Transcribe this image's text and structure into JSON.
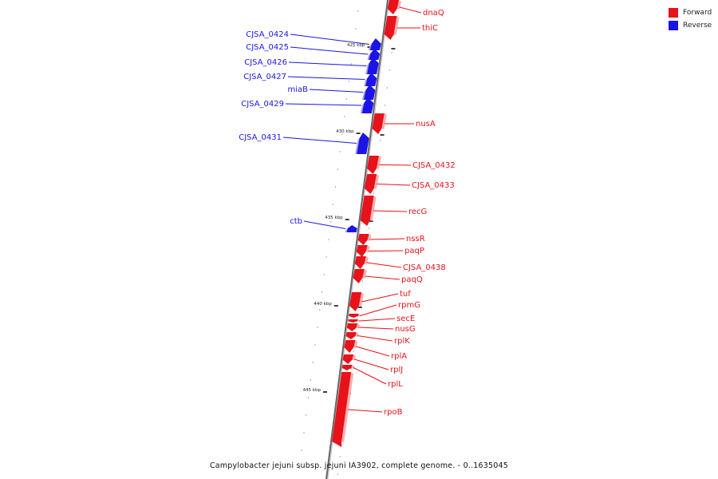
{
  "legend": {
    "forward": {
      "label": "Forward",
      "color": "#e8121a"
    },
    "reverse": {
      "label": "Reverse",
      "color": "#1c14e6"
    }
  },
  "caption": "Campylobacter jejuni subsp. jejuni IA3902, complete genome. - 0..1635045",
  "axis_ticks": [
    "425 kbp",
    "430 kbp",
    "435 kbp",
    "440 kbp",
    "445 kbp"
  ],
  "genes": [
    {
      "name": "dnaQ",
      "strand": "forward"
    },
    {
      "name": "thiC",
      "strand": "forward"
    },
    {
      "name": "CJSA_0424",
      "strand": "reverse"
    },
    {
      "name": "CJSA_0425",
      "strand": "reverse"
    },
    {
      "name": "CJSA_0426",
      "strand": "reverse"
    },
    {
      "name": "CJSA_0427",
      "strand": "reverse"
    },
    {
      "name": "miaB",
      "strand": "reverse"
    },
    {
      "name": "CJSA_0429",
      "strand": "reverse"
    },
    {
      "name": "nusA",
      "strand": "forward"
    },
    {
      "name": "CJSA_0431",
      "strand": "reverse"
    },
    {
      "name": "CJSA_0432",
      "strand": "forward"
    },
    {
      "name": "CJSA_0433",
      "strand": "forward"
    },
    {
      "name": "recG",
      "strand": "forward"
    },
    {
      "name": "ctb",
      "strand": "reverse"
    },
    {
      "name": "nssR",
      "strand": "forward"
    },
    {
      "name": "paqP",
      "strand": "forward"
    },
    {
      "name": "CJSA_0438",
      "strand": "forward"
    },
    {
      "name": "paqQ",
      "strand": "forward"
    },
    {
      "name": "tuf",
      "strand": "forward"
    },
    {
      "name": "rpmG",
      "strand": "forward"
    },
    {
      "name": "secE",
      "strand": "forward"
    },
    {
      "name": "nusG",
      "strand": "forward"
    },
    {
      "name": "rplK",
      "strand": "forward"
    },
    {
      "name": "rplA",
      "strand": "forward"
    },
    {
      "name": "rplJ",
      "strand": "forward"
    },
    {
      "name": "rplL",
      "strand": "forward"
    },
    {
      "name": "rpoB",
      "strand": "forward"
    }
  ]
}
